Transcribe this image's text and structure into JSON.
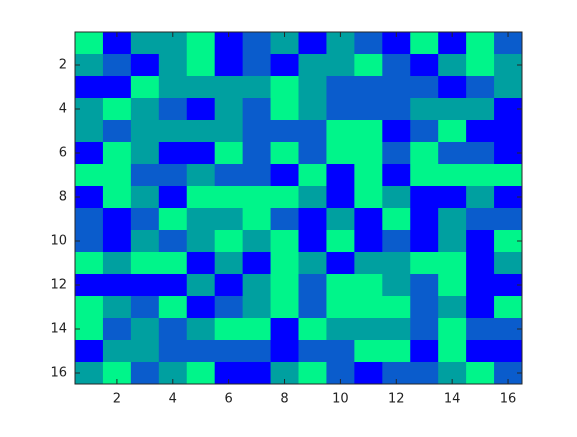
{
  "chart_data": {
    "type": "heatmap",
    "colors": [
      "#0000ff",
      "#0a5ccc",
      "#00a0a0",
      "#00f58a"
    ],
    "z": [
      [
        4,
        1,
        3,
        3,
        4,
        1,
        2,
        3,
        1,
        3,
        2,
        1,
        4,
        1,
        4,
        2
      ],
      [
        3,
        2,
        1,
        3,
        4,
        1,
        2,
        1,
        3,
        3,
        4,
        2,
        1,
        3,
        4,
        3
      ],
      [
        1,
        1,
        4,
        3,
        3,
        3,
        3,
        4,
        3,
        2,
        2,
        2,
        2,
        1,
        2,
        3
      ],
      [
        3,
        4,
        3,
        2,
        1,
        3,
        2,
        4,
        3,
        2,
        2,
        2,
        3,
        3,
        3,
        1
      ],
      [
        3,
        2,
        3,
        3,
        3,
        3,
        2,
        2,
        2,
        4,
        4,
        1,
        2,
        4,
        1,
        1
      ],
      [
        1,
        4,
        3,
        1,
        1,
        4,
        2,
        4,
        2,
        4,
        4,
        2,
        4,
        2,
        2,
        1
      ],
      [
        4,
        4,
        2,
        2,
        3,
        2,
        2,
        1,
        4,
        1,
        4,
        1,
        4,
        4,
        4,
        4
      ],
      [
        1,
        4,
        3,
        1,
        4,
        4,
        4,
        4,
        3,
        1,
        4,
        3,
        1,
        1,
        3,
        1
      ],
      [
        2,
        1,
        2,
        4,
        3,
        3,
        4,
        2,
        1,
        3,
        1,
        4,
        1,
        3,
        2,
        2
      ],
      [
        2,
        1,
        3,
        2,
        3,
        4,
        3,
        4,
        1,
        4,
        1,
        2,
        1,
        3,
        1,
        4
      ],
      [
        4,
        3,
        4,
        4,
        1,
        3,
        1,
        4,
        3,
        1,
        3,
        3,
        4,
        4,
        1,
        3
      ],
      [
        1,
        1,
        1,
        1,
        3,
        1,
        3,
        4,
        2,
        4,
        4,
        3,
        2,
        4,
        1,
        1
      ],
      [
        4,
        3,
        2,
        4,
        1,
        2,
        3,
        4,
        2,
        4,
        4,
        4,
        2,
        3,
        1,
        4
      ],
      [
        4,
        2,
        3,
        2,
        3,
        4,
        4,
        1,
        4,
        3,
        3,
        3,
        2,
        4,
        2,
        2
      ],
      [
        1,
        3,
        3,
        2,
        2,
        2,
        2,
        1,
        2,
        2,
        4,
        4,
        1,
        4,
        1,
        1
      ],
      [
        3,
        4,
        2,
        3,
        4,
        1,
        1,
        3,
        4,
        2,
        1,
        2,
        2,
        3,
        4,
        2
      ]
    ],
    "xlim": [
      0.5,
      16.5
    ],
    "ylim": [
      0.5,
      16.5
    ],
    "y_reversed": true,
    "xticks": [
      2,
      4,
      6,
      8,
      10,
      12,
      14,
      16
    ],
    "yticks": [
      2,
      4,
      6,
      8,
      10,
      12,
      14,
      16
    ]
  }
}
